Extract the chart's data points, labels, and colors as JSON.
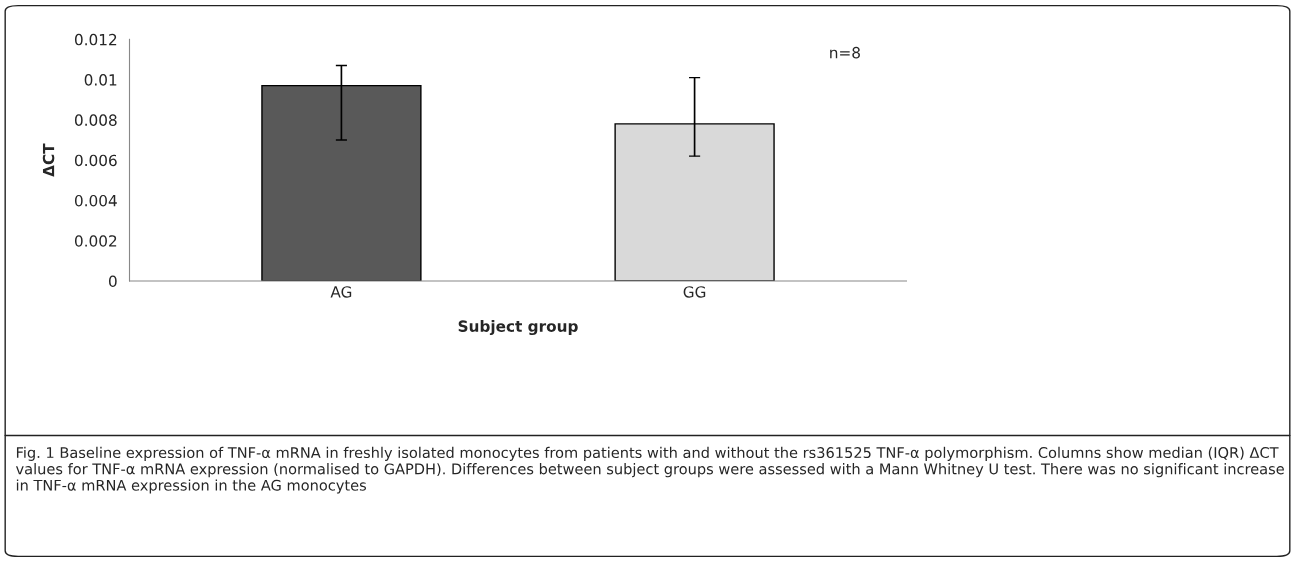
{
  "chart_data": {
    "type": "bar",
    "xlabel": "Subject group",
    "ylabel": "ΔCT",
    "categories": [
      "AG",
      "GG"
    ],
    "values": [
      0.0097,
      0.0078
    ],
    "colors": [
      "#595959",
      "#d9d9d9"
    ],
    "errors": [
      [
        0.007,
        0.0107
      ],
      [
        0.0062,
        0.0101
      ]
    ],
    "ylim": [
      0,
      0.012
    ],
    "yticks": [
      0,
      0.002,
      0.004,
      0.006,
      0.008,
      {
        "value": 0.01,
        "label": "0.01"
      },
      0.012
    ],
    "grid": false,
    "annotations": [
      "n=8",
      "Fig. 1 Baseline expression of TNF-α mRNA in freshly isolated monocytes from patients with and without the rs361525 TNF-α polymorphism. Columns show median (IQR) ΔCT values for TNF-α mRNA expression (normalised to GAPDH). Differences between subject groups were assessed with a Mann Whitney U test. There was no significant increase in TNF-α mRNA expression in the AG monocytes"
    ]
  }
}
